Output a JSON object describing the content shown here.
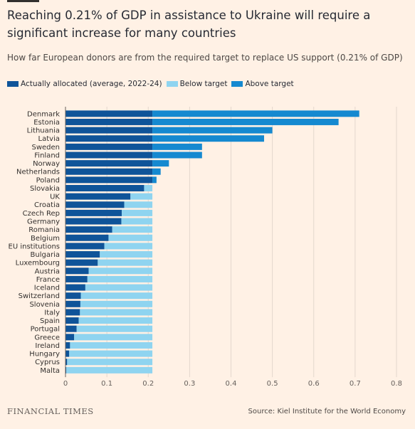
{
  "title": "Reaching 0.21% of GDP in assistance to Ukraine will require a significant increase for many countries",
  "subtitle": "How far European donors are from the required target to replace US support (0.21% of GDP)",
  "legend": [
    {
      "label": "Actually allocated (average, 2022-24)",
      "color": "#0f5499"
    },
    {
      "label": "Below target",
      "color": "#8fd4f0"
    },
    {
      "label": "Above target",
      "color": "#1589d0"
    }
  ],
  "footer": {
    "brand": "FINANCIAL TIMES",
    "source": "Source: Kiel Institute for the World Economy"
  },
  "chart_data": {
    "type": "bar",
    "orientation": "horizontal",
    "stacked": true,
    "target": 0.21,
    "categories": [
      "Denmark",
      "Estonia",
      "Lithuania",
      "Latvia",
      "Sweden",
      "Finland",
      "Norway",
      "Netherlands",
      "Poland",
      "Slovakia",
      "UK",
      "Croatia",
      "Czech Rep",
      "Germany",
      "Romania",
      "Belgium",
      "EU institutions",
      "Bulgaria",
      "Luxembourg",
      "Austria",
      "France",
      "Iceland",
      "Switzerland",
      "Slovenia",
      "Italy",
      "Spain",
      "Portugal",
      "Greece",
      "Ireland",
      "Hungary",
      "Cyprus",
      "Malta"
    ],
    "series": [
      {
        "name": "Actually allocated (average, 2022-24)",
        "color": "#0f5499",
        "values": [
          0.71,
          0.66,
          0.5,
          0.48,
          0.33,
          0.33,
          0.25,
          0.23,
          0.22,
          0.19,
          0.157,
          0.142,
          0.136,
          0.135,
          0.113,
          0.104,
          0.094,
          0.083,
          0.078,
          0.056,
          0.053,
          0.048,
          0.037,
          0.036,
          0.035,
          0.032,
          0.027,
          0.021,
          0.011,
          0.009,
          0.004,
          0.002
        ]
      }
    ],
    "xticks": [
      "0",
      "0.1",
      "0.2",
      "0.3",
      "0.4",
      "0.5",
      "0.6",
      "0.7",
      "0.8"
    ],
    "xlim": [
      0,
      0.8
    ],
    "grid": true,
    "legend_position": "top-left"
  }
}
